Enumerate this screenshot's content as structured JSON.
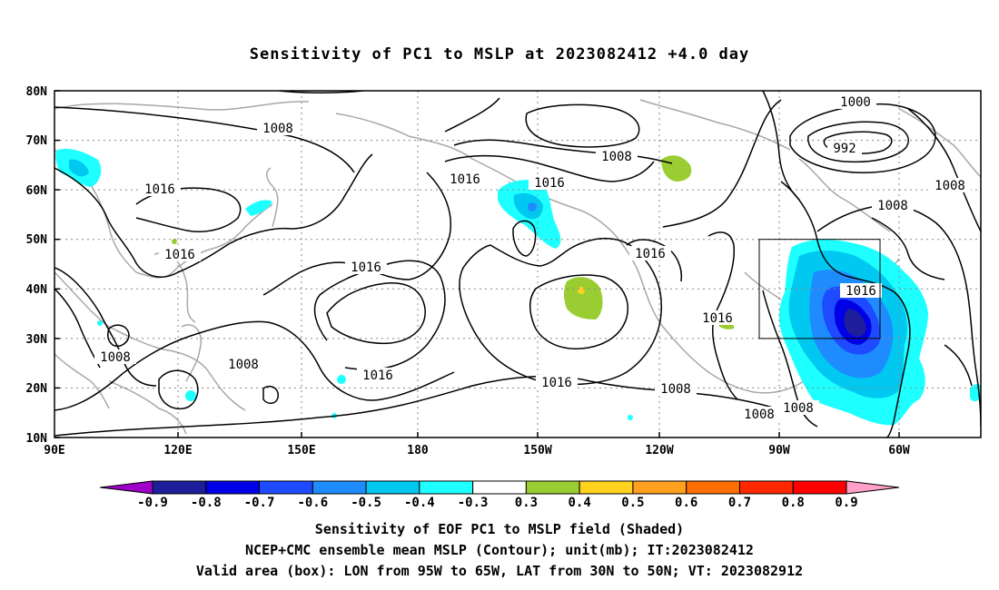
{
  "title": "Sensitivity of PC1 to MSLP at 2023082412 +4.0 day",
  "lat_ticks": [
    "80N",
    "70N",
    "60N",
    "50N",
    "40N",
    "30N",
    "20N",
    "10N"
  ],
  "lon_ticks": [
    "90E",
    "120E",
    "150E",
    "180",
    "150W",
    "120W",
    "90W",
    "60W"
  ],
  "contour_labels": [
    "1008",
    "1016",
    "1016",
    "1008",
    "1016",
    "1016",
    "1008",
    "1000",
    "992",
    "1016",
    "1008",
    "1016",
    "1016",
    "1016",
    "1008",
    "1008",
    "1016",
    "1016",
    "1008",
    "1008",
    "1008"
  ],
  "colorbar": {
    "labels": [
      "-0.9",
      "-0.8",
      "-0.7",
      "-0.6",
      "-0.5",
      "-0.4",
      "-0.3",
      "0.3",
      "0.4",
      "0.5",
      "0.6",
      "0.7",
      "0.8",
      "0.9"
    ],
    "colors": [
      "#a000c8",
      "#1e1e9a",
      "#0000e6",
      "#1e4bff",
      "#1e8cff",
      "#00c8f0",
      "#1effff",
      "#ffffff",
      "#9acd32",
      "#ffd21e",
      "#ffa01e",
      "#ff6e00",
      "#ff2800",
      "#ff0000",
      "#ffa0c8"
    ]
  },
  "captions": [
    "Sensitivity of EOF PC1 to MSLP field (Shaded)",
    "NCEP+CMC ensemble mean MSLP (Contour); unit(mb); IT:2023082412",
    "Valid area (box): LON from 95W to 65W, LAT from 30N to 50N; VT: 2023082912"
  ]
}
